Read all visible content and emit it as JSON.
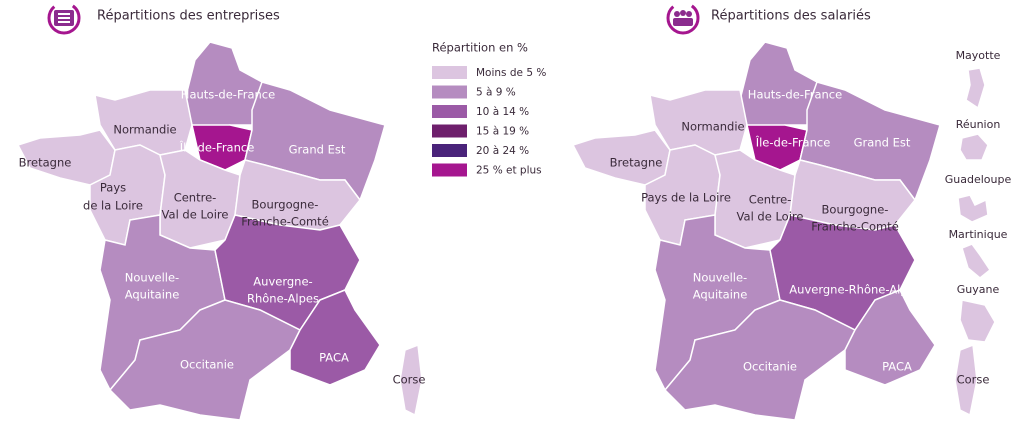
{
  "legend": {
    "title": "Répartition en %",
    "items": [
      {
        "label": "Moins de 5 %",
        "color": "#dcc5e0"
      },
      {
        "label": "5 à 9 %",
        "color": "#b58cc0"
      },
      {
        "label": "10 à 14 %",
        "color": "#9b5aa6"
      },
      {
        "label": "15 à 19 %",
        "color": "#6e1f6c"
      },
      {
        "label": "20 à 24 %",
        "color": "#4a237a"
      },
      {
        "label": "25 % et plus",
        "color": "#a5168f"
      }
    ]
  },
  "maps": [
    {
      "title": "Répartitions des entreprises",
      "regions": [
        {
          "label": [
            "Hauts-de-France"
          ],
          "color": "#b58cc0"
        },
        {
          "label": [
            "Normandie"
          ],
          "color": "#dcc5e0"
        },
        {
          "label": [
            "Bretagne"
          ],
          "color": "#dcc5e0"
        },
        {
          "label": [
            "Île-de-France"
          ],
          "color": "#a5168f"
        },
        {
          "label": [
            "Grand Est"
          ],
          "color": "#b58cc0"
        },
        {
          "label": [
            "Pays",
            "de la Loire"
          ],
          "color": "#dcc5e0"
        },
        {
          "label": [
            "Centre-",
            "Val de Loire"
          ],
          "color": "#dcc5e0"
        },
        {
          "label": [
            "Bourgogne-",
            "Franche-Comté"
          ],
          "color": "#dcc5e0"
        },
        {
          "label": [
            "Nouvelle-",
            "Aquitaine"
          ],
          "color": "#b58cc0"
        },
        {
          "label": [
            "Auvergne-",
            "Rhône-Alpes"
          ],
          "color": "#9b5aa6"
        },
        {
          "label": [
            "Occitanie"
          ],
          "color": "#b58cc0"
        },
        {
          "label": [
            "PACA"
          ],
          "color": "#9b5aa6"
        },
        {
          "label": [
            "Corse"
          ],
          "color": "#dcc5e0"
        }
      ]
    },
    {
      "title": "Répartitions des salariés",
      "regions": [
        {
          "label": [
            "Hauts-de-France"
          ],
          "color": "#b58cc0"
        },
        {
          "label": [
            "Normandie"
          ],
          "color": "#dcc5e0"
        },
        {
          "label": [
            "Bretagne"
          ],
          "color": "#dcc5e0"
        },
        {
          "label": [
            "Île-de-France"
          ],
          "color": "#a5168f"
        },
        {
          "label": [
            "Grand Est"
          ],
          "color": "#b58cc0"
        },
        {
          "label": [
            "Pays de la Loire"
          ],
          "color": "#dcc5e0"
        },
        {
          "label": [
            "Centre-",
            "Val de Loire"
          ],
          "color": "#dcc5e0"
        },
        {
          "label": [
            "Bourgogne-",
            "Franche-Comté"
          ],
          "color": "#dcc5e0"
        },
        {
          "label": [
            "Nouvelle-",
            "Aquitaine"
          ],
          "color": "#b58cc0"
        },
        {
          "label": [
            "Auvergne-Rhône-Alpes"
          ],
          "color": "#9b5aa6"
        },
        {
          "label": [
            "Occitanie"
          ],
          "color": "#b58cc0"
        },
        {
          "label": [
            "PACA"
          ],
          "color": "#b58cc0"
        },
        {
          "label": [
            "Corse"
          ],
          "color": "#dcc5e0"
        },
        {
          "label": [
            "Mayotte"
          ],
          "color": "#dcc5e0"
        },
        {
          "label": [
            "Réunion"
          ],
          "color": "#dcc5e0"
        },
        {
          "label": [
            "Guadeloupe"
          ],
          "color": "#dcc5e0"
        },
        {
          "label": [
            "Martinique"
          ],
          "color": "#dcc5e0"
        },
        {
          "label": [
            "Guyane"
          ],
          "color": "#dcc5e0"
        }
      ]
    }
  ]
}
